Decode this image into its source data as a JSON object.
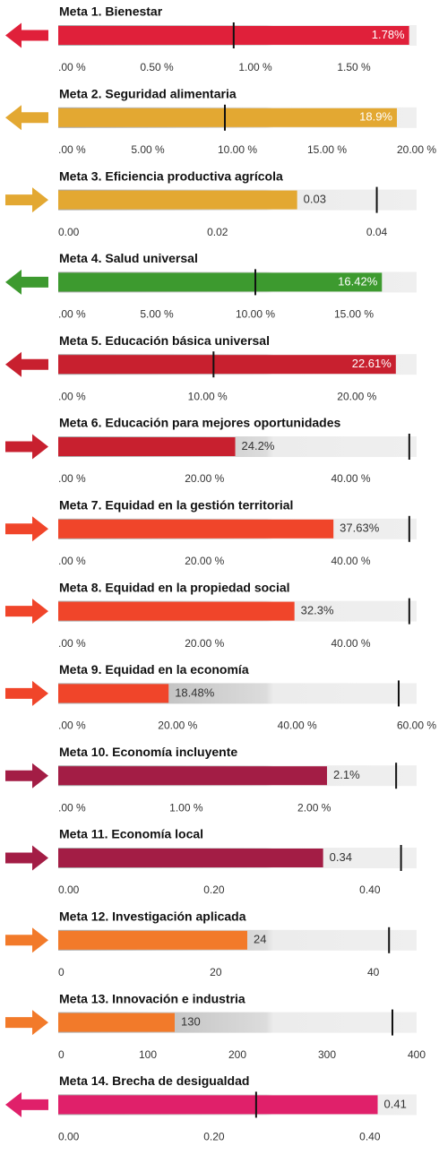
{
  "chart_data": [
    {
      "type": "bullet",
      "title": "Meta 1. Bienestar",
      "value": 1.78,
      "value_label": "1.78%",
      "target": 0.89,
      "xlim": [
        0,
        1.818
      ],
      "xticks": [
        {
          "value": 0,
          "label": ".00 %"
        },
        {
          "value": 0.5,
          "label": "0.50 %"
        },
        {
          "value": 1,
          "label": "1.00 %"
        },
        {
          "value": 1.5,
          "label": "1.50 %"
        }
      ],
      "color": "#e0203a",
      "arrow": "left",
      "label_inside": true
    },
    {
      "type": "bullet",
      "title": "Meta 2. Seguridad alimentaria",
      "value": 18.9,
      "value_label": "18.9%",
      "target": 9.3,
      "xlim": [
        0,
        20
      ],
      "xticks": [
        {
          "value": 0,
          "label": ".00 %"
        },
        {
          "value": 5,
          "label": "5.00 %"
        },
        {
          "value": 10,
          "label": "10.00 %"
        },
        {
          "value": 15,
          "label": "15.00 %"
        },
        {
          "value": 20,
          "label": "20.00 %"
        }
      ],
      "color": "#e3a832",
      "arrow": "left",
      "label_inside": true
    },
    {
      "type": "bullet",
      "title": "Meta 3. Eficiencia productiva agrícola",
      "value": 0.03,
      "target": 0.04,
      "xlim": [
        0,
        0.045
      ],
      "xticks": [
        {
          "value": 0,
          "label": "0.00"
        },
        0.02,
        0.04
      ],
      "color": "#e3a832",
      "arrow": "right",
      "label_inside": false
    },
    {
      "type": "bullet",
      "title": "Meta 4. Salud universal",
      "value": 16.42,
      "value_label": "16.42%",
      "target": 10,
      "xlim": [
        0,
        18.18
      ],
      "xticks": [
        {
          "value": 0,
          "label": ".00 %"
        },
        {
          "value": 5,
          "label": "5.00 %"
        },
        {
          "value": 10,
          "label": "10.00 %"
        },
        {
          "value": 15,
          "label": "15.00 %"
        }
      ],
      "color": "#3d9a2f",
      "arrow": "left",
      "label_inside": true
    },
    {
      "type": "bullet",
      "title": "Meta 5. Educación básica universal",
      "value": 22.61,
      "value_label": "22.61%",
      "target": 10.4,
      "xlim": [
        0,
        24
      ],
      "xticks": [
        {
          "value": 0,
          "label": ".00 %"
        },
        {
          "value": 10,
          "label": "10.00 %"
        },
        {
          "value": 20,
          "label": "20.00 %"
        }
      ],
      "color": "#c8202f",
      "arrow": "left",
      "label_inside": true
    },
    {
      "type": "bullet",
      "title": "Meta 6. Educación para mejores oportunidades",
      "value": 24.2,
      "value_label": "24.2%",
      "target": 48,
      "xlim": [
        0,
        49
      ],
      "xticks": [
        {
          "value": 0,
          "label": ".00 %"
        },
        {
          "value": 20,
          "label": "20.00 %"
        },
        {
          "value": 40,
          "label": "40.00 %"
        }
      ],
      "color": "#c8202f",
      "arrow": "right",
      "label_inside": false
    },
    {
      "type": "bullet",
      "title": "Meta 7. Equidad en la gestión territorial",
      "value": 37.63,
      "value_label": "37.63%",
      "target": 48,
      "xlim": [
        0,
        49
      ],
      "xticks": [
        {
          "value": 0,
          "label": ".00 %"
        },
        {
          "value": 20,
          "label": "20.00 %"
        },
        {
          "value": 40,
          "label": "40.00 %"
        }
      ],
      "color": "#f0452a",
      "arrow": "right",
      "label_inside": false
    },
    {
      "type": "bullet",
      "title": "Meta 8. Equidad en la propiedad social",
      "value": 32.3,
      "value_label": "32.3%",
      "target": 48,
      "xlim": [
        0,
        49
      ],
      "xticks": [
        {
          "value": 0,
          "label": ".00 %"
        },
        {
          "value": 20,
          "label": "20.00 %"
        },
        {
          "value": 40,
          "label": "40.00 %"
        }
      ],
      "color": "#f0452a",
      "arrow": "right",
      "label_inside": false
    },
    {
      "type": "bullet",
      "title": "Meta 9. Equidad en la economía",
      "value": 18.48,
      "value_label": "18.48%",
      "target": 57,
      "xlim": [
        0,
        60
      ],
      "xticks": [
        {
          "value": 0,
          "label": ".00 %"
        },
        {
          "value": 20,
          "label": "20.00 %"
        },
        {
          "value": 40,
          "label": "40.00 %"
        },
        {
          "value": 60,
          "label": "60.00 %"
        }
      ],
      "color": "#f0452a",
      "arrow": "right",
      "label_inside": false
    },
    {
      "type": "bullet",
      "title": "Meta 10. Economía incluyente",
      "value": 2.1,
      "value_label": "2.1%",
      "target": 2.64,
      "xlim": [
        0,
        2.8
      ],
      "xticks": [
        {
          "value": 0,
          "label": ".00 %"
        },
        {
          "value": 1,
          "label": "1.00 %"
        },
        {
          "value": 2,
          "label": "2.00 %"
        }
      ],
      "color": "#a31d45",
      "arrow": "right",
      "label_inside": false
    },
    {
      "type": "bullet",
      "title": "Meta 11. Economía local",
      "value": 0.34,
      "target": 0.44,
      "xlim": [
        0,
        0.46
      ],
      "xticks": [
        {
          "value": 0,
          "label": "0.00"
        },
        {
          "value": 0.2,
          "label": "0.20"
        },
        {
          "value": 0.4,
          "label": "0.40"
        }
      ],
      "color": "#a31d45",
      "arrow": "right",
      "label_inside": false
    },
    {
      "type": "bullet",
      "title": "Meta 12. Investigación aplicada",
      "value": 24,
      "target": 42,
      "xlim": [
        0,
        45.5
      ],
      "xticks": [
        0,
        20,
        40
      ],
      "color": "#f27a2a",
      "arrow": "right",
      "label_inside": false
    },
    {
      "type": "bullet",
      "title": "Meta 13.  Innovación e industria",
      "value": 130,
      "target": 373,
      "xlim": [
        0,
        400
      ],
      "xticks": [
        0,
        100,
        200,
        300,
        400
      ],
      "color": "#f27a2a",
      "arrow": "right",
      "label_inside": false
    },
    {
      "type": "bullet",
      "title": "Meta 14. Brecha de desigualdad",
      "value": 0.41,
      "target": 0.254,
      "xlim": [
        0,
        0.46
      ],
      "xticks": [
        {
          "value": 0,
          "label": "0.00"
        },
        {
          "value": 0.2,
          "label": "0.20"
        },
        {
          "value": 0.4,
          "label": "0.40"
        }
      ],
      "color": "#e0206a",
      "arrow": "left",
      "label_inside": false
    }
  ]
}
